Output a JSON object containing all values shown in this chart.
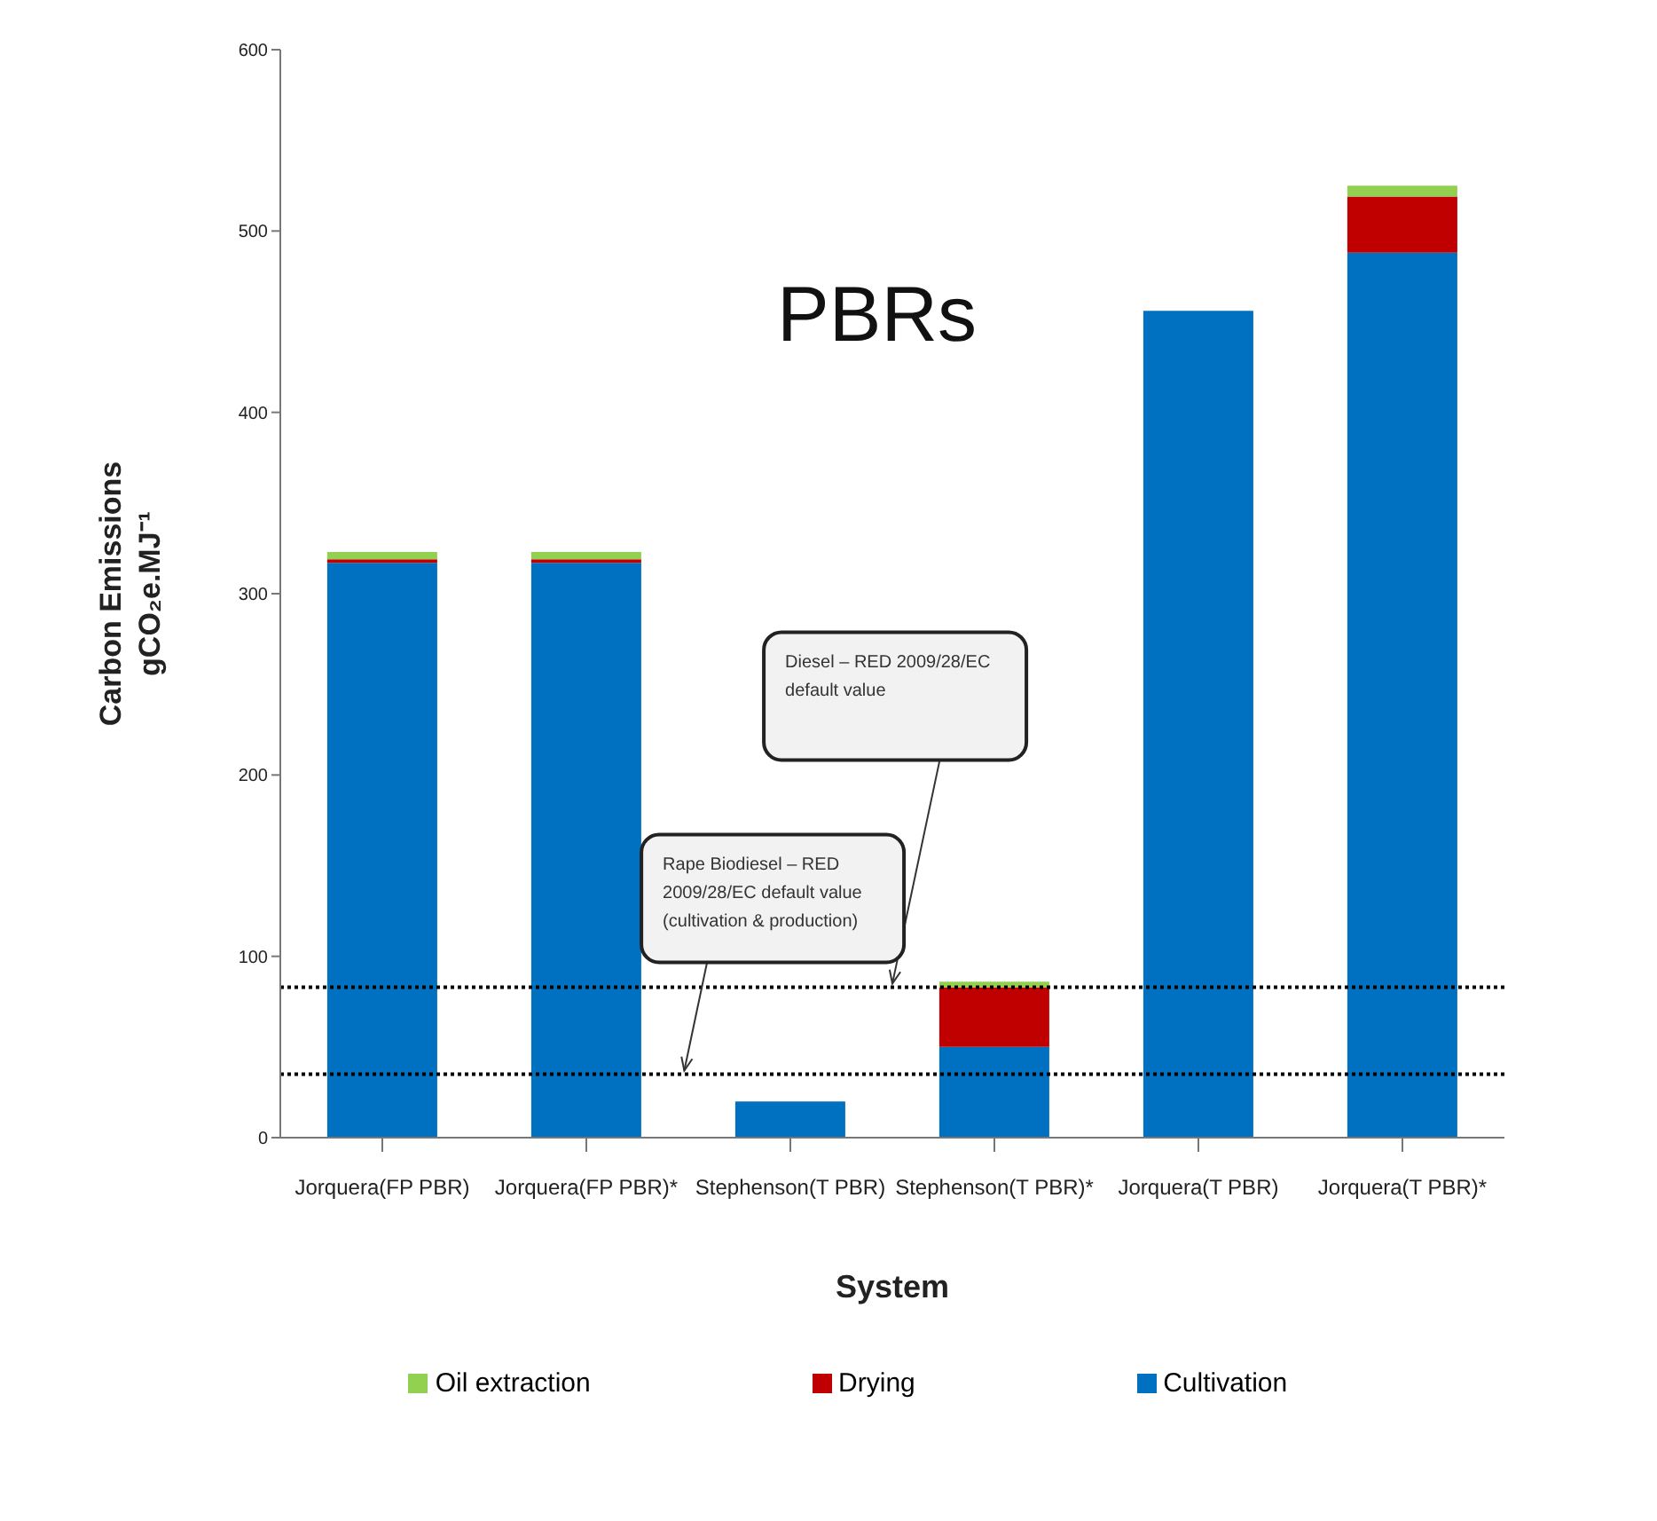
{
  "chart_data": {
    "type": "bar",
    "title": "PBRs",
    "xlabel": "System",
    "ylabel": "Carbon Emissions\ngCO₂e.MJ⁻¹",
    "categories": [
      "Jorquera(FP PBR)",
      "Jorquera(FP PBR)*",
      "Stephenson(T PBR)",
      "Stephenson(T PBR)*",
      "Jorquera(T PBR)",
      "Jorquera(T PBR)*"
    ],
    "series": [
      {
        "name": "Cultivation",
        "color": "#0070c0",
        "values": [
          317,
          317,
          20,
          50,
          456,
          488
        ]
      },
      {
        "name": "Drying",
        "color": "#c00000",
        "values": [
          2,
          2,
          null,
          33,
          null,
          31
        ]
      },
      {
        "name": "Oil extraction",
        "color": "#92d050",
        "values": [
          4,
          4,
          null,
          3,
          null,
          6
        ]
      }
    ],
    "stacked": true,
    "ylim": [
      0,
      600
    ],
    "yticks": [
      0,
      100,
      200,
      300,
      400,
      500,
      600
    ],
    "grid": false,
    "legend": "bottom",
    "ref_lines": [
      {
        "axis": "y",
        "value": 83,
        "line_style": "dotted",
        "color": "#000000"
      },
      {
        "axis": "y",
        "value": 35,
        "line_style": "dotted",
        "color": "#000000"
      }
    ],
    "annotations": [
      "Diesel – RED 2009/28/EC default value",
      "Rape Biodiesel – RED 2009/28/EC default value (cultivation & production)"
    ]
  }
}
